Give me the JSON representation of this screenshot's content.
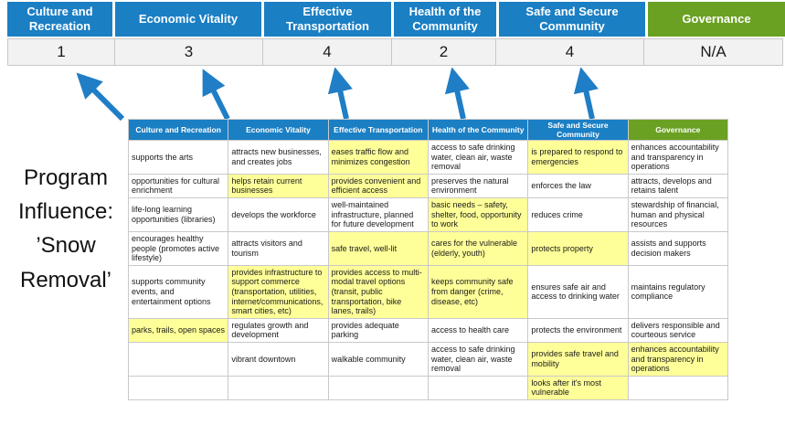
{
  "title": "Program Influence: ’Snow Removal’",
  "colors": {
    "blue": "#1b7fc4",
    "green": "#6aa122",
    "yellow": "#ffff99",
    "arrow": "#1f7ec5",
    "score_bg": "#f2f2f2"
  },
  "summary": {
    "columns": [
      {
        "label": "Culture and Recreation",
        "score": "1",
        "color": "blue"
      },
      {
        "label": "Economic Vitality",
        "score": "3",
        "color": "blue"
      },
      {
        "label": "Effective Transportation",
        "score": "4",
        "color": "blue"
      },
      {
        "label": "Health of the Community",
        "score": "2",
        "color": "blue"
      },
      {
        "label": "Safe and Secure Community",
        "score": "4",
        "color": "blue"
      },
      {
        "label": "Governance",
        "score": "N/A",
        "color": "green"
      }
    ]
  },
  "table": {
    "headers": [
      {
        "label": "Culture and Recreation",
        "color": "blue"
      },
      {
        "label": "Economic Vitality",
        "color": "blue"
      },
      {
        "label": "Effective Transportation",
        "color": "blue"
      },
      {
        "label": "Health of the Community",
        "color": "blue"
      },
      {
        "label": "Safe and Secure Community",
        "color": "blue"
      },
      {
        "label": "Governance",
        "color": "green"
      }
    ],
    "rows": [
      [
        {
          "text": "supports the arts",
          "highlight": false
        },
        {
          "text": "attracts new businesses, and creates jobs",
          "highlight": false
        },
        {
          "text": "eases traffic flow and minimizes congestion",
          "highlight": true
        },
        {
          "text": "access to safe drinking water, clean air, waste removal",
          "highlight": false
        },
        {
          "text": "is prepared to respond to emergencies",
          "highlight": true
        },
        {
          "text": "enhances accountability and transparency in operations",
          "highlight": false
        }
      ],
      [
        {
          "text": "opportunities for cultural enrichment",
          "highlight": false
        },
        {
          "text": "helps retain current businesses",
          "highlight": true
        },
        {
          "text": "provides convenient and efficient access",
          "highlight": true
        },
        {
          "text": "preserves the natural environment",
          "highlight": false
        },
        {
          "text": "enforces the law",
          "highlight": false
        },
        {
          "text": "attracts, develops and retains talent",
          "highlight": false
        }
      ],
      [
        {
          "text": "life-long learning opportunities (libraries)",
          "highlight": false
        },
        {
          "text": "develops the workforce",
          "highlight": false
        },
        {
          "text": "well-maintained infrastructure, planned for future development",
          "highlight": false
        },
        {
          "text": "basic needs – safety, shelter, food, opportunity to work",
          "highlight": true
        },
        {
          "text": "reduces crime",
          "highlight": false
        },
        {
          "text": "stewardship of financial, human and physical resources",
          "highlight": false
        }
      ],
      [
        {
          "text": "encourages healthy people (promotes active lifestyle)",
          "highlight": false
        },
        {
          "text": "attracts visitors and tourism",
          "highlight": false
        },
        {
          "text": "safe travel, well-lit",
          "highlight": true
        },
        {
          "text": "cares for the vulnerable (elderly, youth)",
          "highlight": true
        },
        {
          "text": "protects property",
          "highlight": true
        },
        {
          "text": "assists and supports decision makers",
          "highlight": false
        }
      ],
      [
        {
          "text": "supports community events, and entertainment options",
          "highlight": false
        },
        {
          "text": "provides infrastructure to support commerce (transportation, utilities, internet/communications, smart cities, etc)",
          "highlight": true
        },
        {
          "text": "provides access to multi-modal travel options (transit, public transportation, bike lanes, trails)",
          "highlight": true
        },
        {
          "text": "keeps community safe from danger (crime, disease, etc)",
          "highlight": true
        },
        {
          "text": "ensures safe air and access to drinking water",
          "highlight": false
        },
        {
          "text": "maintains regulatory compliance",
          "highlight": false
        }
      ],
      [
        {
          "text": "parks, trails, open spaces",
          "highlight": true
        },
        {
          "text": "regulates growth and development",
          "highlight": false
        },
        {
          "text": "provides adequate parking",
          "highlight": false
        },
        {
          "text": "access to health care",
          "highlight": false
        },
        {
          "text": "protects the environment",
          "highlight": false
        },
        {
          "text": "delivers responsible and courteous service",
          "highlight": false
        }
      ],
      [
        {
          "text": "",
          "highlight": false
        },
        {
          "text": "vibrant downtown",
          "highlight": false
        },
        {
          "text": "walkable community",
          "highlight": false
        },
        {
          "text": "access to safe drinking water, clean air, waste removal",
          "highlight": false
        },
        {
          "text": "provides safe travel and mobility",
          "highlight": true
        },
        {
          "text": "enhances accountability and transparency in operations",
          "highlight": true
        }
      ],
      [
        {
          "text": "",
          "highlight": false
        },
        {
          "text": "",
          "highlight": false
        },
        {
          "text": "",
          "highlight": false
        },
        {
          "text": "",
          "highlight": false
        },
        {
          "text": "looks after it's most vulnerable",
          "highlight": true
        },
        {
          "text": "",
          "highlight": false
        }
      ]
    ]
  }
}
